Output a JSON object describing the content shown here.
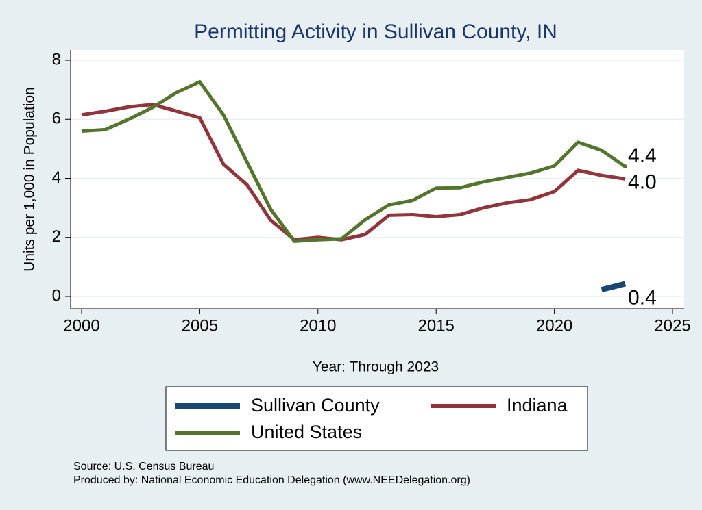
{
  "chart_data": {
    "type": "line",
    "title": "Permitting Activity in Sullivan County, IN",
    "x_label": "Year: Through 2023",
    "y_label": "Units per 1,000 in Population",
    "x": [
      2000,
      2001,
      2002,
      2003,
      2004,
      2005,
      2006,
      2007,
      2008,
      2009,
      2010,
      2011,
      2012,
      2013,
      2014,
      2015,
      2016,
      2017,
      2018,
      2019,
      2020,
      2021,
      2022,
      2023
    ],
    "series": [
      {
        "name": "Sullivan County",
        "color": "#1a476f",
        "values": [
          null,
          null,
          null,
          null,
          null,
          null,
          null,
          null,
          null,
          null,
          null,
          null,
          null,
          null,
          null,
          null,
          null,
          null,
          null,
          null,
          null,
          null,
          0.23,
          0.43
        ],
        "value_labels": [
          null,
          null,
          null,
          null,
          null,
          null,
          null,
          null,
          null,
          null,
          null,
          null,
          null,
          null,
          null,
          null,
          null,
          null,
          null,
          null,
          null,
          null,
          null,
          "0.4"
        ]
      },
      {
        "name": "Indiana",
        "color": "#90353b",
        "values": [
          6.15,
          6.27,
          6.42,
          6.5,
          6.28,
          6.05,
          4.48,
          3.78,
          2.58,
          1.92,
          2.0,
          1.92,
          2.1,
          2.75,
          2.77,
          2.7,
          2.77,
          3.0,
          3.17,
          3.28,
          3.55,
          4.27,
          4.1,
          3.98
        ],
        "value_labels": [
          null,
          null,
          null,
          null,
          null,
          null,
          null,
          null,
          null,
          null,
          null,
          null,
          null,
          null,
          null,
          null,
          null,
          null,
          null,
          null,
          null,
          null,
          null,
          "4.0"
        ]
      },
      {
        "name": "United States",
        "color": "#55752f",
        "values": [
          5.6,
          5.65,
          6.0,
          6.4,
          6.9,
          7.27,
          6.15,
          4.55,
          2.95,
          1.87,
          1.92,
          1.95,
          2.6,
          3.1,
          3.25,
          3.67,
          3.68,
          3.88,
          4.03,
          4.18,
          4.42,
          5.22,
          4.95,
          4.4
        ],
        "value_labels": [
          null,
          null,
          null,
          null,
          null,
          null,
          null,
          null,
          null,
          null,
          null,
          null,
          null,
          null,
          null,
          null,
          null,
          null,
          null,
          null,
          null,
          null,
          null,
          "4.4"
        ]
      }
    ],
    "xlim": [
      2000,
      2025
    ],
    "xticks": [
      2000,
      2005,
      2010,
      2015,
      2020,
      2025
    ],
    "ylim": [
      0,
      8
    ],
    "yticks": [
      0,
      2,
      4,
      6,
      8
    ],
    "grid": true,
    "legend": "bottom",
    "notes": [
      "Source: U.S. Census Bureau",
      "Produced by: National Economic Education Delegation (www.NEEDelegation.org)"
    ]
  }
}
